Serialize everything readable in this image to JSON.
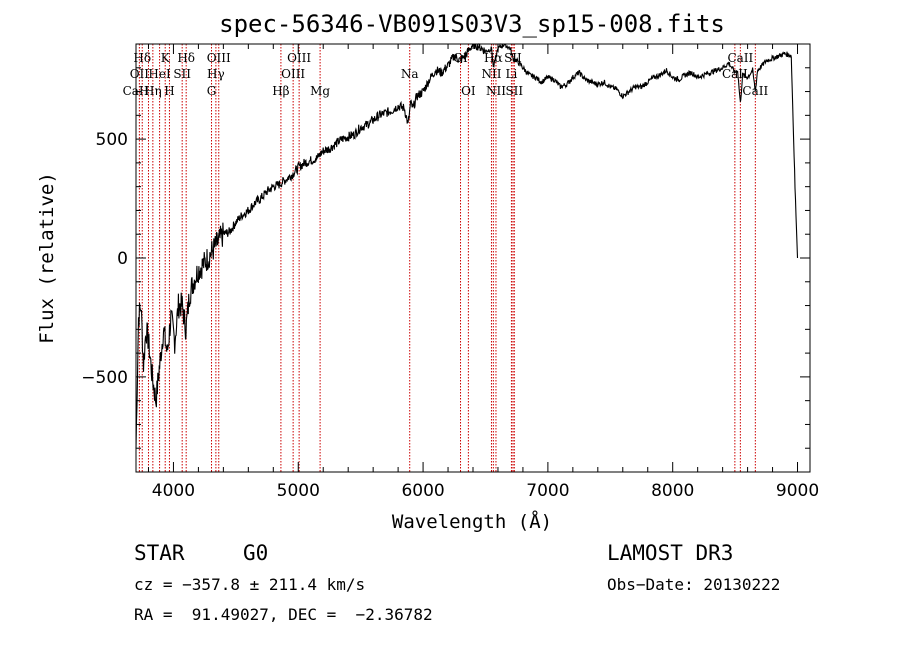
{
  "chart_data": {
    "type": "line",
    "title": "spec-56346-VB091S03V3_sp15-008.fits",
    "xlabel": "Wavelength (Å)",
    "ylabel": "Flux (relative)",
    "xlim": [
      3700,
      9100
    ],
    "ylim": [
      -900,
      900
    ],
    "xticks": [
      4000,
      5000,
      6000,
      7000,
      8000,
      9000
    ],
    "yticks": [
      -500,
      0,
      500
    ],
    "xtick_labels": [
      "4000",
      "5000",
      "6000",
      "7000",
      "8000",
      "9000"
    ],
    "ytick_labels": [
      "−500",
      "0",
      "500"
    ],
    "series": [
      {
        "name": "flux",
        "x": [
          3700,
          3720,
          3740,
          3760,
          3780,
          3800,
          3830,
          3860,
          3890,
          3920,
          3950,
          3980,
          4010,
          4040,
          4070,
          4100,
          4130,
          4160,
          4200,
          4250,
          4300,
          4350,
          4400,
          4450,
          4500,
          4550,
          4600,
          4650,
          4700,
          4750,
          4800,
          4850,
          4900,
          4950,
          5000,
          5050,
          5100,
          5150,
          5200,
          5250,
          5300,
          5350,
          5400,
          5450,
          5500,
          5550,
          5600,
          5650,
          5700,
          5750,
          5800,
          5850,
          5880,
          5900,
          5920,
          5950,
          6000,
          6050,
          6100,
          6150,
          6200,
          6250,
          6300,
          6350,
          6400,
          6450,
          6500,
          6550,
          6563,
          6600,
          6650,
          6700,
          6720,
          6750,
          6800,
          6850,
          6900,
          6950,
          7000,
          7050,
          7100,
          7150,
          7200,
          7250,
          7300,
          7350,
          7400,
          7450,
          7500,
          7550,
          7600,
          7650,
          7700,
          7750,
          7800,
          7850,
          7900,
          7950,
          8000,
          8050,
          8100,
          8150,
          8200,
          8250,
          8300,
          8350,
          8400,
          8450,
          8498,
          8520,
          8542,
          8560,
          8600,
          8640,
          8662,
          8680,
          8700,
          8750,
          8800,
          8850,
          8900,
          8950,
          8980,
          9000
        ],
        "y": [
          -800,
          -250,
          -200,
          -450,
          -300,
          -350,
          -500,
          -600,
          -450,
          -300,
          -400,
          -250,
          -350,
          -200,
          -200,
          -300,
          -150,
          -100,
          -50,
          -20,
          20,
          60,
          100,
          110,
          150,
          180,
          200,
          230,
          250,
          280,
          300,
          310,
          330,
          350,
          380,
          400,
          410,
          420,
          450,
          460,
          480,
          500,
          510,
          520,
          550,
          560,
          580,
          600,
          610,
          620,
          640,
          630,
          560,
          650,
          630,
          680,
          700,
          750,
          790,
          780,
          810,
          850,
          830,
          860,
          900,
          890,
          870,
          880,
          800,
          880,
          900,
          880,
          840,
          830,
          800,
          770,
          760,
          740,
          760,
          750,
          720,
          730,
          760,
          780,
          750,
          740,
          730,
          740,
          720,
          710,
          680,
          700,
          720,
          720,
          740,
          760,
          770,
          790,
          760,
          750,
          770,
          780,
          760,
          770,
          780,
          790,
          800,
          820,
          780,
          790,
          650,
          770,
          760,
          790,
          700,
          790,
          800,
          830,
          840,
          850,
          860,
          850,
          300,
          0
        ]
      }
    ],
    "line_markers": [
      {
        "label": "Hδ",
        "x": 3750,
        "row": 1
      },
      {
        "label": "K",
        "x": 3934,
        "row": 1
      },
      {
        "label": "Hδ",
        "x": 4102,
        "row": 1
      },
      {
        "label": "OIII",
        "x": 4363,
        "row": 1
      },
      {
        "label": "OIII",
        "x": 5007,
        "row": 1
      },
      {
        "label": "OI",
        "x": 6300,
        "row": 1
      },
      {
        "label": "Hα",
        "x": 6563,
        "row": 1
      },
      {
        "label": "SII",
        "x": 6720,
        "row": 1
      },
      {
        "label": "CaII",
        "x": 8542,
        "row": 1
      },
      {
        "label": "OII",
        "x": 3727,
        "row": 2
      },
      {
        "label": "HeI",
        "x": 3889,
        "row": 2
      },
      {
        "label": "SII",
        "x": 4070,
        "row": 2
      },
      {
        "label": "Hγ",
        "x": 4340,
        "row": 2
      },
      {
        "label": "OIII",
        "x": 4959,
        "row": 2
      },
      {
        "label": "Na",
        "x": 5893,
        "row": 2
      },
      {
        "label": "NII",
        "x": 6548,
        "row": 2
      },
      {
        "label": "Li",
        "x": 6708,
        "row": 2
      },
      {
        "label": "CaII",
        "x": 8498,
        "row": 2
      },
      {
        "label": "CaH",
        "x": 3700,
        "row": 3
      },
      {
        "label": "Hη",
        "x": 3835,
        "row": 3
      },
      {
        "label": "H",
        "x": 3968,
        "row": 3
      },
      {
        "label": "G",
        "x": 4305,
        "row": 3
      },
      {
        "label": "Hβ",
        "x": 4861,
        "row": 3
      },
      {
        "label": "Mg",
        "x": 5175,
        "row": 3
      },
      {
        "label": "OI",
        "x": 6363,
        "row": 3
      },
      {
        "label": "NII",
        "x": 6584,
        "row": 3
      },
      {
        "label": "SII",
        "x": 6731,
        "row": 3
      },
      {
        "label": "CaII",
        "x": 8662,
        "row": 3
      }
    ],
    "marker_lines_x": [
      3727,
      3750,
      3800,
      3835,
      3889,
      3934,
      3968,
      4070,
      4102,
      4305,
      4340,
      4363,
      4861,
      4959,
      5007,
      5175,
      5893,
      6300,
      6363,
      6548,
      6563,
      6584,
      6708,
      6720,
      6731,
      8498,
      8542,
      8662
    ]
  },
  "info": {
    "obj_class": "STAR",
    "subclass": "G0",
    "survey": "LAMOST DR3",
    "cz": "cz = −357.8 ± 211.4 km/s",
    "obs_date": "Obs−Date: 20130222",
    "radec": "RA =  91.49027, DEC =  −2.36782"
  },
  "colors": {
    "marker": "#cc0000",
    "line": "#000000"
  }
}
